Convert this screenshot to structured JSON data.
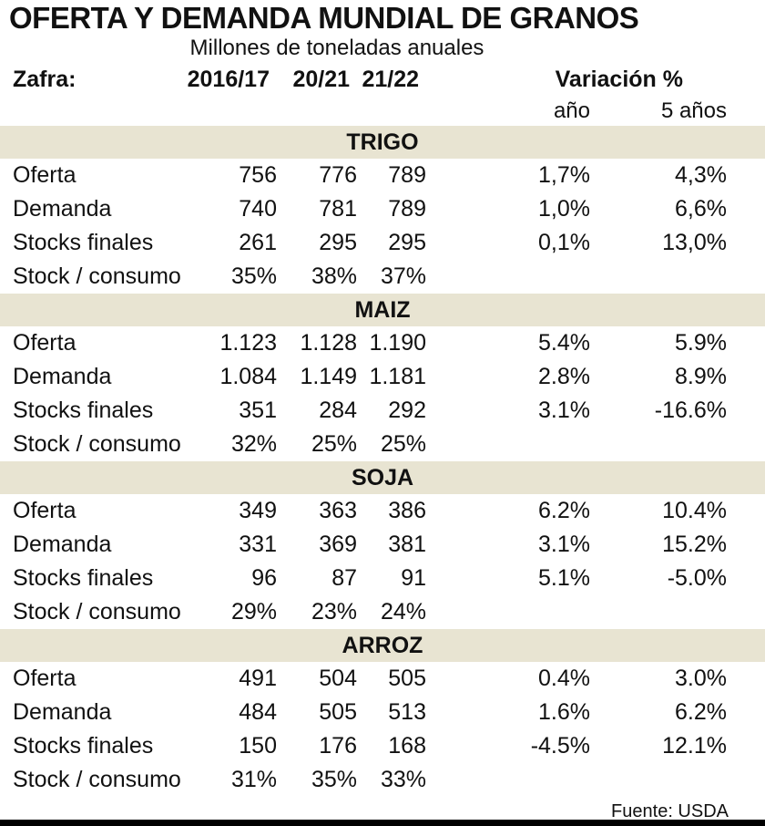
{
  "colors": {
    "band_background": "#e8e4d2",
    "bottom_bar": "#000000"
  },
  "chart_data": {
    "type": "table",
    "title": "OFERTA Y DEMANDA MUNDIAL DE GRANOS",
    "subtitle": "Millones de toneladas anuales",
    "zafra_label": "Zafra:",
    "year_columns": [
      "2016/17",
      "20/21",
      "21/22"
    ],
    "variation_label": "Variación %",
    "variation_columns": [
      "año",
      "5 años"
    ],
    "source": "Fuente: USDA",
    "sections": [
      {
        "name": "TRIGO",
        "rows": [
          {
            "label": "Oferta",
            "values": [
              "756",
              "776",
              "789"
            ],
            "var_year": "1,7%",
            "var_5y": "4,3%"
          },
          {
            "label": "Demanda",
            "values": [
              "740",
              "781",
              "789"
            ],
            "var_year": "1,0%",
            "var_5y": "6,6%"
          },
          {
            "label": "Stocks finales",
            "values": [
              "261",
              "295",
              "295"
            ],
            "var_year": "0,1%",
            "var_5y": "13,0%"
          },
          {
            "label": "Stock / consumo",
            "values": [
              "35%",
              "38%",
              "37%"
            ],
            "var_year": "",
            "var_5y": ""
          }
        ]
      },
      {
        "name": "MAIZ",
        "rows": [
          {
            "label": "Oferta",
            "values": [
              "1.123",
              "1.128",
              "1.190"
            ],
            "var_year": "5.4%",
            "var_5y": "5.9%"
          },
          {
            "label": "Demanda",
            "values": [
              "1.084",
              "1.149",
              "1.181"
            ],
            "var_year": "2.8%",
            "var_5y": "8.9%"
          },
          {
            "label": "Stocks finales",
            "values": [
              "351",
              "284",
              "292"
            ],
            "var_year": "3.1%",
            "var_5y": "-16.6%"
          },
          {
            "label": "Stock / consumo",
            "values": [
              "32%",
              "25%",
              "25%"
            ],
            "var_year": "",
            "var_5y": ""
          }
        ]
      },
      {
        "name": "SOJA",
        "rows": [
          {
            "label": "Oferta",
            "values": [
              "349",
              "363",
              "386"
            ],
            "var_year": "6.2%",
            "var_5y": "10.4%"
          },
          {
            "label": "Demanda",
            "values": [
              "331",
              "369",
              "381"
            ],
            "var_year": "3.1%",
            "var_5y": "15.2%"
          },
          {
            "label": "Stocks finales",
            "values": [
              "96",
              "87",
              "91"
            ],
            "var_year": "5.1%",
            "var_5y": "-5.0%"
          },
          {
            "label": "Stock / consumo",
            "values": [
              "29%",
              "23%",
              "24%"
            ],
            "var_year": "",
            "var_5y": ""
          }
        ]
      },
      {
        "name": "ARROZ",
        "rows": [
          {
            "label": "Oferta",
            "values": [
              "491",
              "504",
              "505"
            ],
            "var_year": "0.4%",
            "var_5y": "3.0%"
          },
          {
            "label": "Demanda",
            "values": [
              "484",
              "505",
              "513"
            ],
            "var_year": "1.6%",
            "var_5y": "6.2%"
          },
          {
            "label": "Stocks finales",
            "values": [
              "150",
              "176",
              "168"
            ],
            "var_year": "-4.5%",
            "var_5y": "12.1%"
          },
          {
            "label": "Stock / consumo",
            "values": [
              "31%",
              "35%",
              "33%"
            ],
            "var_year": "",
            "var_5y": ""
          }
        ]
      }
    ]
  }
}
